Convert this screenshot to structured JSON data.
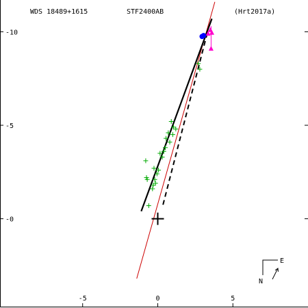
{
  "header": {
    "left": "WDS 18489+1615",
    "center": "STF2400AB",
    "right": "(Hrt2017a)"
  },
  "compass": {
    "north": "N",
    "east": "E"
  },
  "colors": {
    "axes": "#000000",
    "observations": "#00aa00",
    "orbit_fit": "#cc0000",
    "speckle_point": "#0000ff",
    "recent_point": "#ff00cc"
  },
  "chart_data": {
    "type": "scatter",
    "title": "",
    "xlabel": "",
    "ylabel": "",
    "xlim": [
      -10.5,
      10
    ],
    "ylim": [
      -4.7,
      11.7
    ],
    "x_ticks": [
      {
        "value": -5,
        "label": "-5"
      },
      {
        "value": 0,
        "label": "0"
      },
      {
        "value": 5,
        "label": "5"
      }
    ],
    "y_ticks": [
      {
        "value": 10,
        "label": "-10"
      },
      {
        "value": 5,
        "label": "-5"
      },
      {
        "value": 0,
        "label": "-0"
      }
    ],
    "primary_star": [
      0,
      0
    ],
    "observations": [
      [
        -0.8,
        3.1
      ],
      [
        -0.75,
        2.2
      ],
      [
        -0.7,
        2.1
      ],
      [
        -0.6,
        0.7
      ],
      [
        -0.35,
        1.6
      ],
      [
        -0.3,
        1.8
      ],
      [
        -0.25,
        2.7
      ],
      [
        -0.2,
        2.1
      ],
      [
        -0.15,
        1.9
      ],
      [
        -0.05,
        2.4
      ],
      [
        0.05,
        2.6
      ],
      [
        0.15,
        3.5
      ],
      [
        0.3,
        3.3
      ],
      [
        0.4,
        3.6
      ],
      [
        0.5,
        3.8
      ],
      [
        0.55,
        4.3
      ],
      [
        0.7,
        4.6
      ],
      [
        0.8,
        4.1
      ],
      [
        0.9,
        5.2
      ],
      [
        1.0,
        4.5
      ],
      [
        1.05,
        4.9
      ],
      [
        1.2,
        4.8
      ],
      [
        2.7,
        8.3
      ],
      [
        2.8,
        8.0
      ]
    ],
    "speckle_points": [
      [
        2.95,
        9.75
      ],
      [
        3.05,
        9.8
      ]
    ],
    "recent_points": [
      [
        3.35,
        9.9
      ],
      [
        3.5,
        10.1
      ],
      [
        3.6,
        9.95
      ]
    ],
    "recent_error_bar": {
      "x": 3.55,
      "y_low": 9.1,
      "y_high": 10.3
    },
    "fit_line": [
      [
        -1.1,
        0.4
      ],
      [
        3.6,
        10.7
      ]
    ],
    "dashed_line": [
      [
        0.35,
        0.75
      ],
      [
        3.35,
        10.1
      ]
    ],
    "orbit_line": [
      [
        -1.4,
        -3.2
      ],
      [
        3.8,
        11.6
      ]
    ]
  }
}
